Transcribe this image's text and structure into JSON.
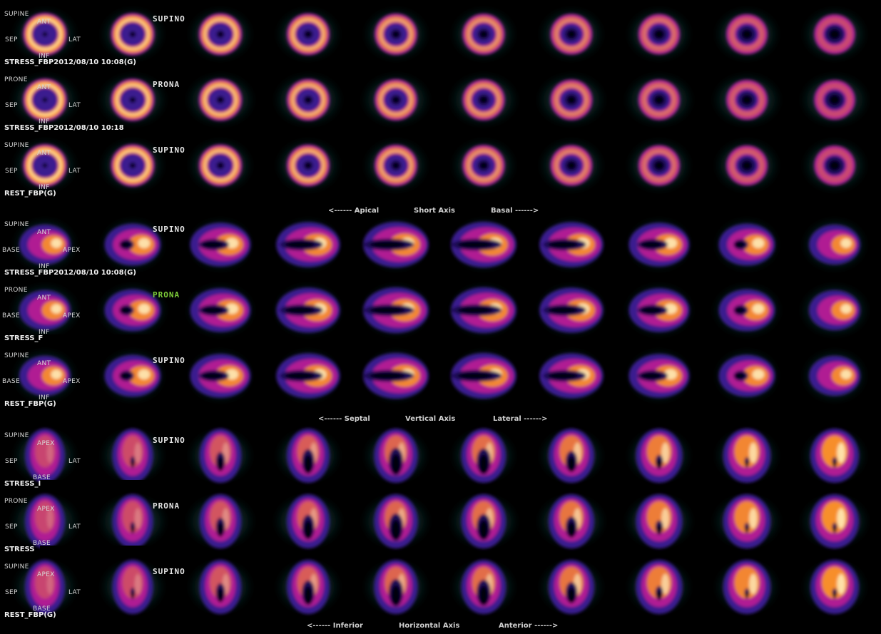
{
  "accent_colors": {
    "halo": "#1d6b66",
    "outer": "#3a1a8f",
    "mid": "#b01f93",
    "hot": "#ff9a1e",
    "peak": "#fff6c8"
  },
  "sections": [
    {
      "kind": "short-axis",
      "rows": [
        {
          "position": "SUPINE",
          "orient": {
            "top": "ANT",
            "left": "SEP",
            "right": "LAT",
            "bottom": "INF"
          },
          "overlay": "SUPINO",
          "overlay_color": "#e6e6e6",
          "series": "STRESS_FBP2012/08/10 10:08(G)",
          "redacted": false
        },
        {
          "position": "PRONE",
          "orient": {
            "top": "ANT",
            "left": "SEP",
            "right": "LAT",
            "bottom": "INF"
          },
          "overlay": "PRONA",
          "overlay_color": "#e6e6e6",
          "series": "STRESS_FBP2012/08/10 10:18",
          "redacted": false
        },
        {
          "position": "SUPINE",
          "orient": {
            "top": "ANT",
            "left": "SEP",
            "right": "LAT",
            "bottom": "INF"
          },
          "overlay": "SUPINO",
          "overlay_color": "#e6e6e6",
          "series": "REST_FBP(G)",
          "redacted": false
        }
      ],
      "axis": {
        "left": "<------ Apical",
        "center": "Short Axis",
        "right": "Basal ------>"
      }
    },
    {
      "kind": "vertical-long-axis",
      "rows": [
        {
          "position": "SUPINE",
          "orient": {
            "top": "ANT",
            "left": "BASE",
            "right": "APEX",
            "bottom": "INF"
          },
          "overlay": "SUPINO",
          "overlay_color": "#e6e6e6",
          "series": "STRESS_FBP2012/08/10 10:08(G)",
          "redacted": false
        },
        {
          "position": "PRONE",
          "orient": {
            "top": "ANT",
            "left": "BASE",
            "right": "APEX",
            "bottom": "INF"
          },
          "overlay": "PRONA",
          "overlay_color": "#7fcf3a",
          "series": "STRESS_F",
          "redacted": true
        },
        {
          "position": "SUPINE",
          "orient": {
            "top": "ANT",
            "left": "BASE",
            "right": "APEX",
            "bottom": "INF"
          },
          "overlay": "SUPINO",
          "overlay_color": "#e6e6e6",
          "series": "REST_FBP(G)",
          "redacted": false
        }
      ],
      "axis": {
        "left": "<------ Septal",
        "center": "Vertical Axis",
        "right": "Lateral ------>"
      }
    },
    {
      "kind": "horizontal-long-axis",
      "rows": [
        {
          "position": "SUPINE",
          "orient": {
            "top": "APEX",
            "left": "SEP",
            "right": "LAT",
            "bottom": "BASE"
          },
          "overlay": "SUPINO",
          "overlay_color": "#e6e6e6",
          "series": "STRESS_I",
          "redacted": true
        },
        {
          "position": "PRONE",
          "orient": {
            "top": "APEX",
            "left": "SEP",
            "right": "LAT",
            "bottom": "BASE"
          },
          "overlay": "PRONA",
          "overlay_color": "#e6e6e6",
          "series": "STRESS",
          "redacted": true
        },
        {
          "position": "SUPINE",
          "orient": {
            "top": "APEX",
            "left": "SEP",
            "right": "LAT",
            "bottom": "BASE"
          },
          "overlay": "SUPINO",
          "overlay_color": "#e6e6e6",
          "series": "REST_FBP(G)",
          "redacted": false
        }
      ],
      "axis": {
        "left": "<------ Inferior",
        "center": "Horizontal Axis",
        "right": "Anterior ------>"
      }
    }
  ]
}
